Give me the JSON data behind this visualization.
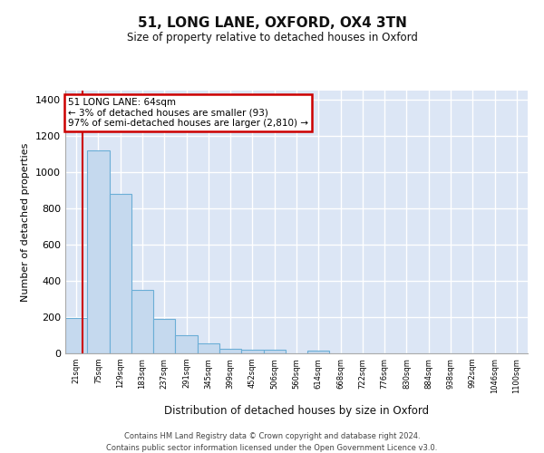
{
  "title_line1": "51, LONG LANE, OXFORD, OX4 3TN",
  "title_line2": "Size of property relative to detached houses in Oxford",
  "xlabel": "Distribution of detached houses by size in Oxford",
  "ylabel": "Number of detached properties",
  "bin_labels": [
    "21sqm",
    "75sqm",
    "129sqm",
    "183sqm",
    "237sqm",
    "291sqm",
    "345sqm",
    "399sqm",
    "452sqm",
    "506sqm",
    "560sqm",
    "614sqm",
    "668sqm",
    "722sqm",
    "776sqm",
    "830sqm",
    "884sqm",
    "938sqm",
    "992sqm",
    "1046sqm",
    "1100sqm"
  ],
  "bar_values": [
    197,
    1120,
    880,
    350,
    192,
    100,
    55,
    25,
    22,
    18,
    0,
    15,
    0,
    0,
    0,
    0,
    0,
    0,
    0,
    0,
    0
  ],
  "bar_color": "#c5d9ee",
  "bar_edge_color": "#6baed6",
  "annotation_text": "51 LONG LANE: 64sqm\n← 3% of detached houses are smaller (93)\n97% of semi-detached houses are larger (2,810) →",
  "annotation_box_facecolor": "#ffffff",
  "annotation_box_edgecolor": "#cc0000",
  "vline_color": "#cc0000",
  "ylim": [
    0,
    1450
  ],
  "yticks": [
    0,
    200,
    400,
    600,
    800,
    1000,
    1200,
    1400
  ],
  "background_color": "#dce6f5",
  "grid_color": "#ffffff",
  "figure_background": "#ffffff",
  "footer_line1": "Contains HM Land Registry data © Crown copyright and database right 2024.",
  "footer_line2": "Contains public sector information licensed under the Open Government Licence v3.0."
}
